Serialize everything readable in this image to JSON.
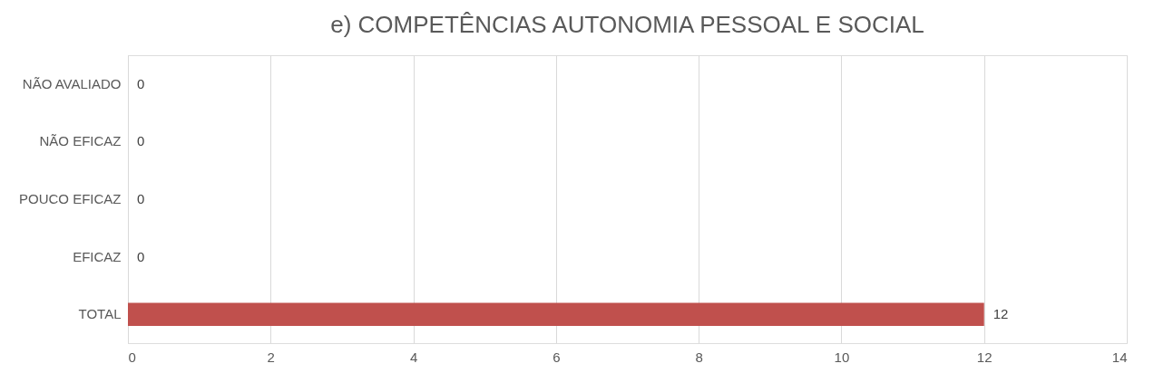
{
  "chart_data": {
    "type": "bar",
    "orientation": "horizontal",
    "title": "e) COMPETÊNCIAS AUTONOMIA PESSOAL E SOCIAL",
    "categories": [
      "NÃO AVALIADO",
      "NÃO EFICAZ",
      "POUCO EFICAZ",
      "EFICAZ",
      "TOTAL"
    ],
    "values": [
      0,
      0,
      0,
      0,
      12
    ],
    "color": "#c0504d",
    "xlim": [
      0,
      14
    ],
    "xticks": [
      0,
      2,
      4,
      6,
      8,
      10,
      12,
      14
    ],
    "grid": "x",
    "data_labels": true
  }
}
